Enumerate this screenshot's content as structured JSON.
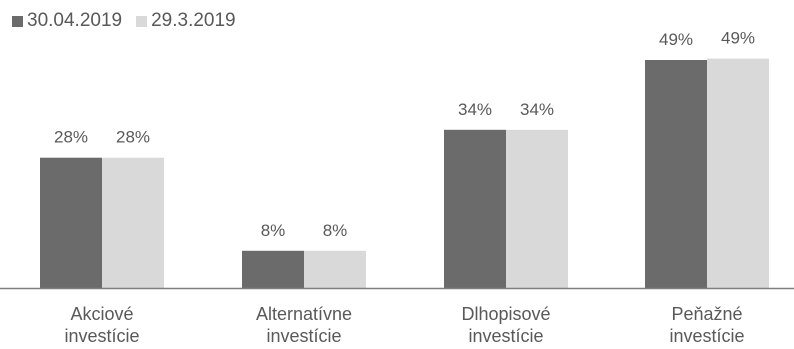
{
  "chart_data": {
    "type": "bar",
    "categories": [
      [
        "Akciové",
        "investície"
      ],
      [
        "Alternatívne",
        "investície"
      ],
      [
        "Dlhopisové",
        "investície"
      ],
      [
        "Peňažné",
        "investície"
      ]
    ],
    "series": [
      {
        "name": "30.04.2019",
        "values": [
          28,
          8,
          34,
          49
        ],
        "labels": [
          "28%",
          "8%",
          "34%",
          "49%"
        ],
        "color": "#6b6b6b"
      },
      {
        "name": "29.3.2019",
        "values": [
          28,
          8,
          34,
          49.3
        ],
        "labels": [
          "28%",
          "8%",
          "34%",
          "49%"
        ],
        "color": "#d9d9d9"
      }
    ],
    "ylim": [
      0,
      52
    ],
    "legend_position": "top-left",
    "grid": false,
    "axis_color": "#7f7f7f",
    "label_color": "#595959"
  }
}
